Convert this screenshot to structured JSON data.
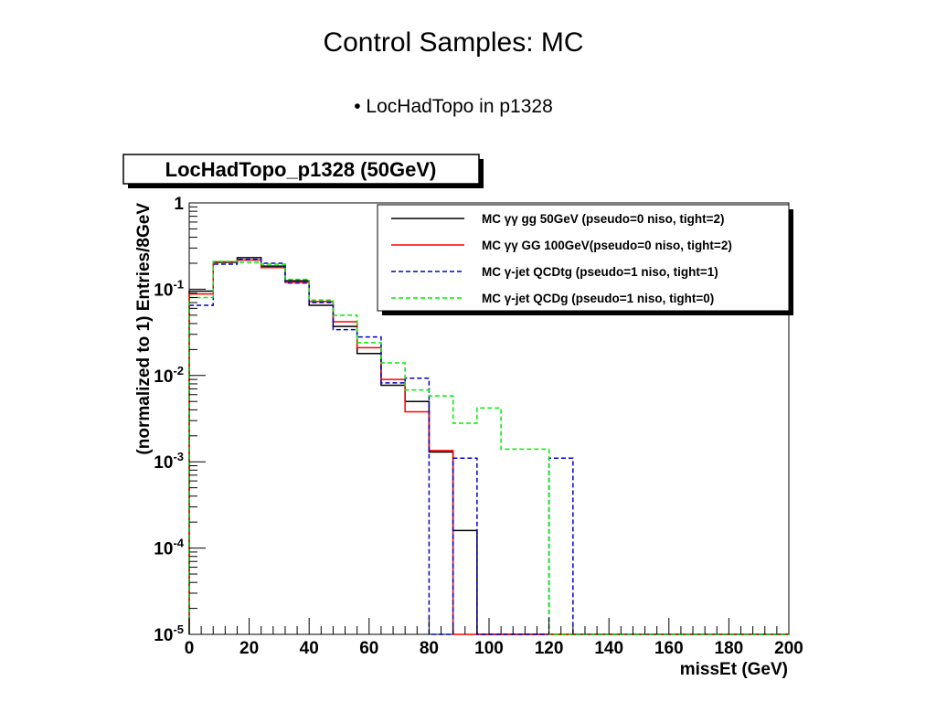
{
  "slide": {
    "title": "Control Samples: MC",
    "bullet": "• LocHadTopo in p1328"
  },
  "chart_data": {
    "type": "step-histogram",
    "title": "LocHadTopo_p1328 (50GeV)",
    "xlabel": "missEt (GeV)",
    "ylabel": "(normalized to 1) Entries/8GeV",
    "xlim": [
      0,
      200
    ],
    "ylim": [
      1e-05,
      1
    ],
    "yscale": "log",
    "x_ticks": [
      "0",
      "20",
      "40",
      "60",
      "80",
      "100",
      "120",
      "140",
      "160",
      "180",
      "200"
    ],
    "y_ticks": [
      {
        "base": "1",
        "exp": ""
      },
      {
        "base": "10",
        "exp": "-1"
      },
      {
        "base": "10",
        "exp": "-2"
      },
      {
        "base": "10",
        "exp": "-3"
      },
      {
        "base": "10",
        "exp": "-4"
      },
      {
        "base": "10",
        "exp": "-5"
      }
    ],
    "bin_edges": [
      0,
      8,
      16,
      24,
      32,
      40,
      48,
      56,
      64,
      72,
      80,
      88,
      96,
      104,
      112,
      120,
      128,
      136,
      144,
      152,
      160,
      168,
      176,
      184,
      192,
      200
    ],
    "grid": false,
    "legend_position": "top-right",
    "series": [
      {
        "name": "MC γγ gg 50GeV (pseudo=0 niso, tight=2)",
        "color": "#000000",
        "dash": "solid",
        "values": [
          0.095,
          0.205,
          0.232,
          0.185,
          0.125,
          0.065,
          0.037,
          0.018,
          0.0077,
          0.005,
          0.0013,
          0.00016,
          0,
          0,
          0,
          0,
          0,
          0,
          0,
          0,
          0,
          0,
          0,
          0,
          0
        ]
      },
      {
        "name": "MC γγ GG 100GeV(pseudo=0 niso, tight=2)",
        "color": "#ff0000",
        "dash": "solid",
        "values": [
          0.088,
          0.208,
          0.218,
          0.178,
          0.12,
          0.072,
          0.042,
          0.021,
          0.009,
          0.0038,
          0.00135,
          0,
          0,
          0,
          0,
          0,
          0,
          0,
          0,
          0,
          0,
          0,
          0,
          0,
          0
        ]
      },
      {
        "name": "MC γ-jet QCDtg (pseudo=1 niso, tight=1)",
        "color": "#0000cc",
        "dash": "dashed",
        "values": [
          0.065,
          0.195,
          0.222,
          0.2,
          0.118,
          0.07,
          0.034,
          0.028,
          0.0082,
          0.0093,
          0,
          0.0011,
          0,
          0,
          0,
          0.0011,
          0,
          0,
          0,
          0,
          0,
          0,
          0,
          0,
          0
        ]
      },
      {
        "name": "MC γ-jet QCDg  (pseudo=1 niso, tight=0)",
        "color": "#00ee00",
        "dash": "dashed",
        "values": [
          0.08,
          0.21,
          0.205,
          0.195,
          0.13,
          0.075,
          0.05,
          0.024,
          0.014,
          0.0068,
          0.0058,
          0.0028,
          0.0042,
          0.0014,
          0.0014,
          0,
          0,
          0,
          0,
          0,
          0,
          0,
          0,
          0,
          0
        ]
      }
    ]
  }
}
